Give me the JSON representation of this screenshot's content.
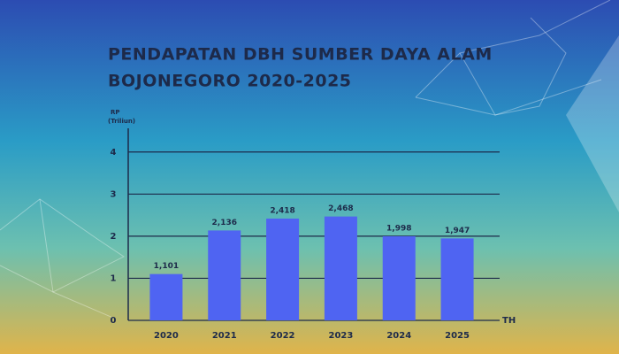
{
  "chart_data": {
    "type": "bar",
    "title": [
      "PENDAPATAN DBH SUMBER DAYA ALAM",
      "BOJONEGORO 2020-2025"
    ],
    "y_label": [
      "RP",
      "(Triliun)"
    ],
    "x_label": "TH",
    "categories": [
      "2020",
      "2021",
      "2022",
      "2023",
      "2024",
      "2025"
    ],
    "values": [
      1.101,
      2.136,
      2.418,
      2.468,
      1.998,
      1.947
    ],
    "value_labels": [
      "1,101",
      "2,136",
      "2,418",
      "2,468",
      "1,998",
      "1,947"
    ],
    "color": "#4f64f2",
    "ylim": [
      0,
      4.5
    ],
    "yticks": [
      0,
      1,
      2,
      3,
      4
    ],
    "grid": true
  }
}
